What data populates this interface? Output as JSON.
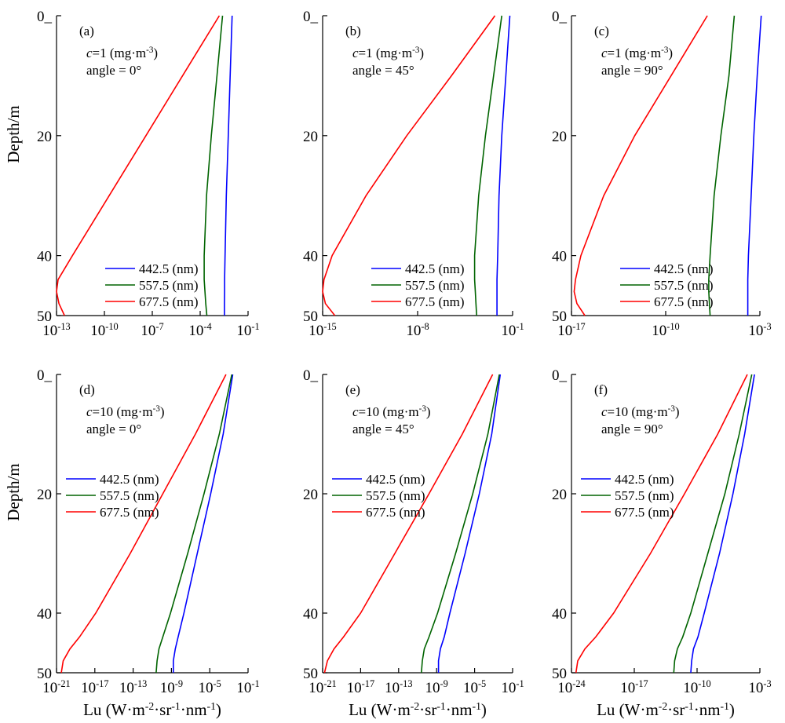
{
  "figure": {
    "ylabel": "Depth/m",
    "xlabel_main": "Lu (W·m",
    "xlabel_parts": [
      "Lu (W·m",
      "-2",
      "·sr",
      "-1",
      "·nm",
      "-1",
      ")"
    ]
  },
  "legend_entries": [
    "442.5 (nm)",
    "557.5 (nm)",
    "677.5 (nm)"
  ],
  "colors": {
    "442.5": "#0000ff",
    "557.5": "#006400",
    "677.5": "#ff0000"
  },
  "chart_data": [
    {
      "type": "line",
      "panel": "(a)",
      "c_label": "=1 (mg·m",
      "angle_label": "angle = 0°",
      "x_scale": "log10",
      "xlim_exp": [
        -13,
        -1
      ],
      "x_ticks_exp": [
        -13,
        -10,
        -7,
        -4,
        -1
      ],
      "ylim": [
        50,
        0
      ],
      "y_ticks": [
        0,
        20,
        40,
        50
      ],
      "legend_position": "bottom-right",
      "depth": [
        0,
        10,
        20,
        30,
        40,
        44,
        46,
        48,
        50
      ],
      "series": [
        {
          "name": "442.5 (nm)",
          "log10_Lu": [
            -2.0,
            -2.12,
            -2.24,
            -2.36,
            -2.44,
            -2.47,
            -2.47,
            -2.48,
            -2.48
          ]
        },
        {
          "name": "557.5 (nm)",
          "log10_Lu": [
            -2.6,
            -2.95,
            -3.3,
            -3.6,
            -3.75,
            -3.75,
            -3.7,
            -3.65,
            -3.58
          ]
        },
        {
          "name": "677.5 (nm)",
          "log10_Lu": [
            -2.8,
            -5.1,
            -7.4,
            -9.7,
            -12.0,
            -12.9,
            -13.0,
            -12.85,
            -12.5
          ]
        }
      ]
    },
    {
      "type": "line",
      "panel": "(b)",
      "c_label": "=1 (mg·m",
      "angle_label": "angle = 45°",
      "x_scale": "log10",
      "xlim_exp": [
        -15,
        -1
      ],
      "x_ticks_exp": [
        -15,
        -8,
        -1
      ],
      "ylim": [
        50,
        0
      ],
      "y_ticks": [
        0,
        20,
        40,
        50
      ],
      "legend_position": "bottom-right",
      "depth": [
        0,
        10,
        20,
        30,
        40,
        44,
        46,
        48,
        50
      ],
      "series": [
        {
          "name": "442.5 (nm)",
          "log10_Lu": [
            -1.2,
            -1.5,
            -1.8,
            -2.0,
            -2.1,
            -2.15,
            -2.15,
            -2.15,
            -2.15
          ]
        },
        {
          "name": "557.5 (nm)",
          "log10_Lu": [
            -1.8,
            -2.4,
            -3.0,
            -3.5,
            -3.8,
            -3.8,
            -3.75,
            -3.7,
            -3.65
          ]
        },
        {
          "name": "677.5 (nm)",
          "log10_Lu": [
            -2.3,
            -5.5,
            -8.8,
            -11.8,
            -14.3,
            -14.9,
            -15.0,
            -14.8,
            -14.1
          ]
        }
      ]
    },
    {
      "type": "line",
      "panel": "(c)",
      "c_label": "=1 (mg·m",
      "angle_label": "angle = 90°",
      "x_scale": "log10",
      "xlim_exp": [
        -17,
        -3
      ],
      "x_ticks_exp": [
        -17,
        -10,
        -3
      ],
      "ylim": [
        50,
        0
      ],
      "y_ticks": [
        0,
        20,
        40,
        50
      ],
      "legend_position": "bottom-right",
      "depth": [
        0,
        10,
        20,
        30,
        40,
        44,
        46,
        48,
        50
      ],
      "series": [
        {
          "name": "442.5 (nm)",
          "log10_Lu": [
            -2.9,
            -3.2,
            -3.45,
            -3.65,
            -3.85,
            -3.9,
            -3.9,
            -3.9,
            -3.9
          ]
        },
        {
          "name": "557.5 (nm)",
          "log10_Lu": [
            -4.9,
            -5.3,
            -5.9,
            -6.4,
            -6.7,
            -6.8,
            -6.8,
            -6.75,
            -6.7
          ]
        },
        {
          "name": "677.5 (nm)",
          "log10_Lu": [
            -6.9,
            -9.6,
            -12.3,
            -14.6,
            -16.3,
            -16.7,
            -16.8,
            -16.6,
            -16.0
          ]
        }
      ]
    },
    {
      "type": "line",
      "panel": "(d)",
      "c_label": "=10 (mg·m",
      "angle_label": "angle = 0°",
      "x_scale": "log10",
      "xlim_exp": [
        -21,
        -1
      ],
      "x_ticks_exp": [
        -21,
        -17,
        -13,
        -9,
        -5,
        -1
      ],
      "ylim": [
        50,
        0
      ],
      "y_ticks": [
        0,
        20,
        40,
        50
      ],
      "legend_position": "middle-left",
      "depth": [
        0,
        10,
        20,
        30,
        40,
        44,
        46,
        48,
        50
      ],
      "series": [
        {
          "name": "442.5 (nm)",
          "log10_Lu": [
            -2.6,
            -3.6,
            -4.9,
            -6.3,
            -7.7,
            -8.3,
            -8.6,
            -8.8,
            -8.8
          ]
        },
        {
          "name": "557.5 (nm)",
          "log10_Lu": [
            -2.7,
            -4.0,
            -5.6,
            -7.3,
            -9.1,
            -9.9,
            -10.3,
            -10.5,
            -10.6
          ]
        },
        {
          "name": "677.5 (nm)",
          "log10_Lu": [
            -3.3,
            -6.5,
            -9.9,
            -13.3,
            -16.9,
            -18.6,
            -19.6,
            -20.3,
            -20.5
          ]
        }
      ]
    },
    {
      "type": "line",
      "panel": "(e)",
      "c_label": "=10 (mg·m",
      "angle_label": "angle = 45°",
      "x_scale": "log10",
      "xlim_exp": [
        -21,
        -1
      ],
      "x_ticks_exp": [
        -21,
        -17,
        -13,
        -9,
        -5,
        -1
      ],
      "ylim": [
        50,
        0
      ],
      "y_ticks": [
        0,
        20,
        40,
        50
      ],
      "legend_position": "top-right",
      "depth": [
        0,
        10,
        20,
        30,
        40,
        44,
        46,
        48,
        50
      ],
      "series": [
        {
          "name": "442.5 (nm)",
          "log10_Lu": [
            -2.3,
            -3.2,
            -4.5,
            -6.0,
            -7.6,
            -8.2,
            -8.6,
            -8.8,
            -8.8
          ]
        },
        {
          "name": "557.5 (nm)",
          "log10_Lu": [
            -2.4,
            -3.6,
            -5.2,
            -7.0,
            -8.9,
            -9.8,
            -10.3,
            -10.5,
            -10.6
          ]
        },
        {
          "name": "677.5 (nm)",
          "log10_Lu": [
            -3.1,
            -6.3,
            -9.8,
            -13.4,
            -17.0,
            -18.8,
            -19.8,
            -20.5,
            -20.8
          ]
        }
      ]
    },
    {
      "type": "line",
      "panel": "(f)",
      "c_label": "=10 (mg·m",
      "angle_label": "angle = 90°",
      "x_scale": "log10",
      "xlim_exp": [
        -24,
        -3
      ],
      "x_ticks_exp": [
        -24,
        -17,
        -10,
        -3
      ],
      "ylim": [
        50,
        0
      ],
      "y_ticks": [
        0,
        20,
        40,
        50
      ],
      "legend_position": "middle-left",
      "depth": [
        0,
        10,
        20,
        30,
        40,
        44,
        46,
        48,
        50
      ],
      "series": [
        {
          "name": "442.5 (nm)",
          "log10_Lu": [
            -3.6,
            -4.7,
            -6.0,
            -7.5,
            -9.2,
            -9.9,
            -10.4,
            -10.6,
            -10.7
          ]
        },
        {
          "name": "557.5 (nm)",
          "log10_Lu": [
            -3.9,
            -5.3,
            -6.9,
            -8.8,
            -10.7,
            -11.6,
            -12.2,
            -12.5,
            -12.6
          ]
        },
        {
          "name": "677.5 (nm)",
          "log10_Lu": [
            -4.4,
            -7.7,
            -11.4,
            -15.2,
            -19.3,
            -21.3,
            -22.5,
            -23.3,
            -23.5
          ]
        }
      ]
    }
  ]
}
